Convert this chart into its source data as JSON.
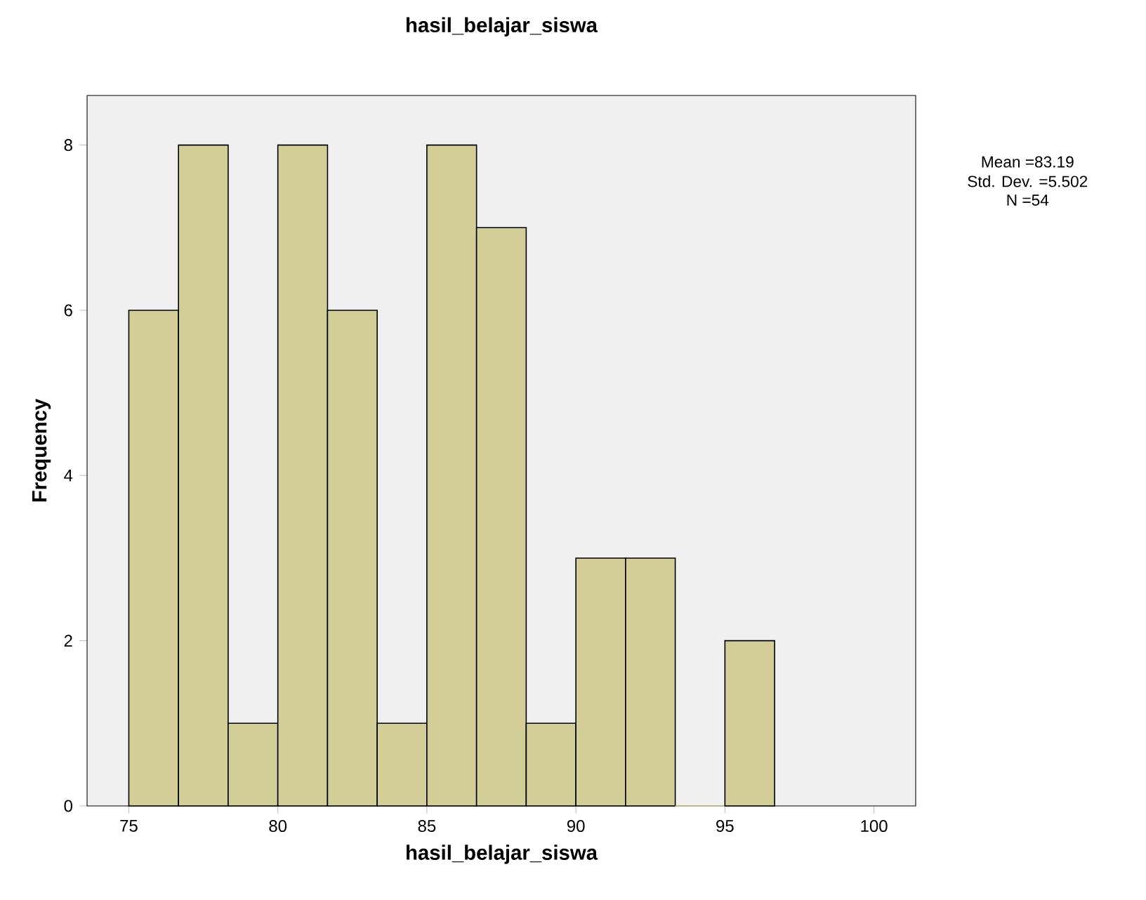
{
  "chart_data": {
    "type": "histogram",
    "title": "hasil_belajar_siswa",
    "xlabel": "hasil_belajar_siswa",
    "ylabel": "Frequency",
    "bins": [
      75,
      76.667,
      78.333,
      80,
      81.667,
      83.333,
      85,
      86.667,
      88.333,
      90,
      91.667,
      93.333,
      95,
      96.667
    ],
    "values": [
      6,
      8,
      1,
      8,
      6,
      1,
      8,
      7,
      1,
      3,
      3,
      0,
      2
    ],
    "color": "#d3ce97",
    "xlim": [
      73.6,
      101.4
    ],
    "ylim": [
      0,
      8.6
    ],
    "xticks": [
      75,
      80,
      85,
      90,
      95,
      100
    ],
    "yticks": [
      0,
      2,
      4,
      6,
      8
    ],
    "grid": false,
    "annotations": [
      "Mean =83.19",
      "Std. Dev. =5.502",
      "N =54"
    ]
  }
}
